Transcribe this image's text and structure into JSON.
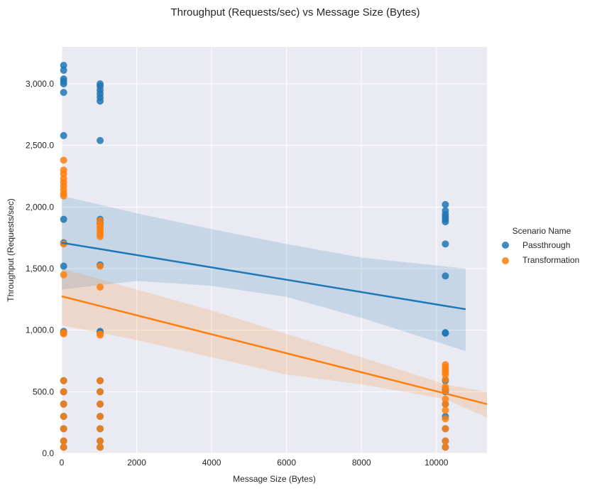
{
  "chart_data": {
    "type": "scatter",
    "title": "Throughput (Requests/sec) vs Message Size (Bytes)",
    "xlabel": "Message Size (Bytes)",
    "ylabel": "Throughput (Requests/sec)",
    "xlim": [
      0,
      11350
    ],
    "ylim": [
      0,
      3300
    ],
    "xticks": [
      0,
      2000,
      4000,
      6000,
      8000,
      10000
    ],
    "xtick_labels": [
      "0",
      "2000",
      "4000",
      "6000",
      "8000",
      "10000"
    ],
    "yticks": [
      0,
      500,
      1000,
      1500,
      2000,
      2500,
      3000
    ],
    "ytick_labels": [
      "0.0",
      "500.0",
      "1,000.0",
      "1,500.0",
      "2,000.0",
      "2,500.0",
      "3,000.0"
    ],
    "grid": true,
    "legend": {
      "title": "Scenario Name",
      "placement": "right"
    },
    "series": [
      {
        "name": "Passthrough",
        "color": "#1f77b4",
        "points": [
          [
            50,
            3150
          ],
          [
            50,
            3110
          ],
          [
            50,
            3040
          ],
          [
            50,
            3020
          ],
          [
            50,
            3000
          ],
          [
            50,
            2930
          ],
          [
            50,
            2580
          ],
          [
            50,
            1900
          ],
          [
            50,
            1710
          ],
          [
            50,
            1520
          ],
          [
            50,
            990
          ],
          [
            50,
            980
          ],
          [
            50,
            590
          ],
          [
            50,
            500
          ],
          [
            50,
            400
          ],
          [
            50,
            300
          ],
          [
            50,
            200
          ],
          [
            50,
            100
          ],
          [
            50,
            50
          ],
          [
            1024,
            3000
          ],
          [
            1024,
            2980
          ],
          [
            1024,
            2950
          ],
          [
            1024,
            2920
          ],
          [
            1024,
            2890
          ],
          [
            1024,
            2860
          ],
          [
            1024,
            2540
          ],
          [
            1024,
            1900
          ],
          [
            1024,
            1870
          ],
          [
            1024,
            1530
          ],
          [
            1024,
            990
          ],
          [
            1024,
            980
          ],
          [
            1024,
            590
          ],
          [
            1024,
            500
          ],
          [
            1024,
            400
          ],
          [
            1024,
            300
          ],
          [
            1024,
            200
          ],
          [
            1024,
            100
          ],
          [
            1024,
            50
          ],
          [
            10240,
            2020
          ],
          [
            10240,
            1970
          ],
          [
            10240,
            1940
          ],
          [
            10240,
            1920
          ],
          [
            10240,
            1900
          ],
          [
            10240,
            1880
          ],
          [
            10240,
            1700
          ],
          [
            10240,
            1440
          ],
          [
            10240,
            980
          ],
          [
            10240,
            975
          ],
          [
            10240,
            590
          ],
          [
            10240,
            520
          ],
          [
            10240,
            500
          ],
          [
            10240,
            400
          ],
          [
            10240,
            300
          ],
          [
            10240,
            200
          ],
          [
            10240,
            100
          ],
          [
            10240,
            50
          ]
        ],
        "regression": {
          "x_start": 0,
          "y_start": 1710,
          "x_end": 10780,
          "y_end": 1170
        },
        "ci_band": [
          [
            0,
            2090,
            1330
          ],
          [
            2000,
            1950,
            1400
          ],
          [
            4000,
            1820,
            1360
          ],
          [
            6000,
            1700,
            1270
          ],
          [
            8000,
            1590,
            1100
          ],
          [
            10780,
            1500,
            830
          ]
        ]
      },
      {
        "name": "Transformation",
        "color": "#ff7f0e",
        "points": [
          [
            50,
            2380
          ],
          [
            50,
            2300
          ],
          [
            50,
            2270
          ],
          [
            50,
            2230
          ],
          [
            50,
            2200
          ],
          [
            50,
            2170
          ],
          [
            50,
            2140
          ],
          [
            50,
            2110
          ],
          [
            50,
            2090
          ],
          [
            50,
            1700
          ],
          [
            50,
            1450
          ],
          [
            50,
            980
          ],
          [
            50,
            970
          ],
          [
            50,
            590
          ],
          [
            50,
            500
          ],
          [
            50,
            400
          ],
          [
            50,
            300
          ],
          [
            50,
            200
          ],
          [
            50,
            100
          ],
          [
            50,
            50
          ],
          [
            1024,
            1890
          ],
          [
            1024,
            1860
          ],
          [
            1024,
            1840
          ],
          [
            1024,
            1820
          ],
          [
            1024,
            1800
          ],
          [
            1024,
            1780
          ],
          [
            1024,
            1760
          ],
          [
            1024,
            1520
          ],
          [
            1024,
            1350
          ],
          [
            1024,
            970
          ],
          [
            1024,
            960
          ],
          [
            1024,
            590
          ],
          [
            1024,
            500
          ],
          [
            1024,
            400
          ],
          [
            1024,
            300
          ],
          [
            1024,
            200
          ],
          [
            1024,
            100
          ],
          [
            1024,
            50
          ],
          [
            10240,
            720
          ],
          [
            10240,
            700
          ],
          [
            10240,
            680
          ],
          [
            10240,
            660
          ],
          [
            10240,
            640
          ],
          [
            10240,
            600
          ],
          [
            10240,
            540
          ],
          [
            10240,
            510
          ],
          [
            10240,
            440
          ],
          [
            10240,
            400
          ],
          [
            10240,
            350
          ],
          [
            10240,
            280
          ],
          [
            10240,
            200
          ],
          [
            10240,
            100
          ],
          [
            10240,
            50
          ]
        ],
        "regression": {
          "x_start": 0,
          "y_start": 1275,
          "x_end": 11350,
          "y_end": 400
        },
        "ci_band": [
          [
            0,
            1500,
            1040
          ],
          [
            2000,
            1330,
            920
          ],
          [
            4000,
            1160,
            780
          ],
          [
            6000,
            970,
            640
          ],
          [
            8000,
            780,
            560
          ],
          [
            10240,
            560,
            440
          ],
          [
            11350,
            500,
            290
          ]
        ]
      }
    ]
  }
}
